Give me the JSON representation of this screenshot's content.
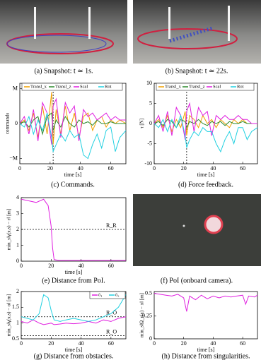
{
  "images": [
    {
      "caption": "(a) Snapshot: t ≃ 1s."
    },
    {
      "caption": "(b) Snapshot: t ≃ 22s."
    },
    {
      "caption": "(f) PoI (onboard camera)."
    }
  ],
  "chart_data": [
    {
      "type": "line",
      "caption": "(c) Commands.",
      "x_label": "time [s]",
      "y_label": "commands",
      "xlim": [
        0,
        70
      ],
      "xticks": [
        0,
        20,
        40,
        60
      ],
      "ylim": [
        -1.15,
        1.15
      ],
      "yticks": [
        {
          "value": -1,
          "label": "−M"
        },
        0,
        {
          "value": 1,
          "label": "M"
        }
      ],
      "vline": 22,
      "x": [
        0,
        3,
        6,
        9,
        12,
        15,
        18,
        21,
        22,
        24,
        27,
        30,
        33,
        36,
        39,
        42,
        45,
        48,
        51,
        54,
        57,
        60,
        63,
        66,
        70
      ],
      "series": [
        {
          "name": "Transl_x",
          "color": "#f0a000",
          "values": [
            0,
            0.1,
            -0.2,
            0.3,
            -0.4,
            0.5,
            -0.3,
            0.9,
            -0.6,
            0.4,
            -0.3,
            0.5,
            -0.2,
            0.3,
            -0.4,
            0.2,
            0.3,
            -0.2,
            0.1,
            0.2,
            -0.1,
            0.1,
            0,
            0.1,
            0
          ]
        },
        {
          "name": "Transl_z",
          "color": "#2e8b2e",
          "values": [
            0,
            0.05,
            -0.1,
            0.1,
            0.2,
            -0.3,
            0.2,
            0.3,
            -0.2,
            0.1,
            -0.1,
            0.2,
            0,
            -0.1,
            0.1,
            0,
            0.05,
            -0.05,
            0.1,
            0,
            0,
            0.05,
            0,
            0,
            0
          ]
        },
        {
          "name": "Scal",
          "color": "#e020e0",
          "values": [
            0,
            0.2,
            -0.3,
            0.4,
            -0.5,
            0.6,
            0.3,
            -0.6,
            0.5,
            0.7,
            -0.4,
            0.6,
            0.3,
            0.5,
            -0.5,
            0.4,
            0.2,
            0.3,
            0.1,
            0.2,
            0.3,
            0.1,
            0.2,
            0.1,
            0.1
          ]
        },
        {
          "name": "Rot",
          "color": "#20d0e0",
          "values": [
            0,
            -0.1,
            0.2,
            -0.3,
            0.1,
            -0.2,
            0.3,
            -0.4,
            -0.8,
            -0.6,
            -0.3,
            -0.5,
            -0.2,
            -0.4,
            -0.3,
            -0.9,
            -1,
            -0.6,
            -0.3,
            -0.7,
            -0.2,
            -0.1,
            -0.8,
            -0.4,
            -0.2
          ]
        }
      ]
    },
    {
      "type": "line",
      "caption": "(d) Force feedback.",
      "x_label": "time [s]",
      "y_label": "τ [N]",
      "xlim": [
        0,
        70
      ],
      "xticks": [
        0,
        20,
        40,
        60
      ],
      "ylim": [
        -10,
        10
      ],
      "yticks": [
        -10,
        -5,
        0,
        5,
        10
      ],
      "vline": 22,
      "x": [
        0,
        3,
        6,
        9,
        12,
        15,
        18,
        21,
        22,
        24,
        27,
        30,
        33,
        36,
        39,
        42,
        45,
        48,
        51,
        54,
        57,
        60,
        63,
        66,
        70
      ],
      "series": [
        {
          "name": "Transl_x",
          "color": "#f0a000",
          "values": [
            0,
            1,
            -1,
            2,
            -2,
            1,
            -1,
            3,
            -3,
            2,
            1,
            -1,
            2,
            0,
            1,
            -1,
            1,
            0,
            -1,
            1,
            0,
            1,
            0,
            0,
            0
          ]
        },
        {
          "name": "Transl_z",
          "color": "#2e8b2e",
          "values": [
            0,
            0.5,
            -0.5,
            1,
            0.5,
            -1,
            1,
            0.5,
            -1,
            0.5,
            0,
            1,
            0,
            -0.5,
            0.5,
            0,
            0.5,
            -0.5,
            0.5,
            0,
            0,
            0.5,
            0,
            0,
            0
          ]
        },
        {
          "name": "Scal",
          "color": "#e020e0",
          "values": [
            0,
            2,
            -2,
            3,
            -3,
            4,
            2,
            -4,
            3,
            5,
            -2,
            4,
            2,
            3,
            -3,
            2,
            1,
            2,
            1,
            1,
            2,
            1,
            1,
            0,
            0
          ]
        },
        {
          "name": "Rot",
          "color": "#20d0e0",
          "values": [
            0,
            -1,
            1,
            -2,
            1,
            -1,
            2,
            -3,
            -6,
            -4,
            -2,
            -3,
            -1,
            -2,
            -2,
            -5,
            -7,
            -4,
            -2,
            -5,
            -1,
            -1,
            -4,
            -2,
            -1
          ]
        }
      ]
    },
    {
      "type": "line",
      "caption": "(e) Distance from PoI.",
      "x_label": "time [s]",
      "y_label": "min_s‖γ(x,s) − r‖ [m]",
      "xlim": [
        0,
        70
      ],
      "xticks": [
        0,
        20,
        40,
        60
      ],
      "ylim": [
        0,
        4
      ],
      "yticks": [
        0,
        1,
        2,
        3,
        4
      ],
      "hlines": [
        {
          "value": 2,
          "label": "R_R"
        }
      ],
      "x": [
        0,
        5,
        10,
        15,
        18,
        20,
        21,
        22,
        25,
        30,
        40,
        50,
        60,
        70
      ],
      "series": [
        {
          "color": "#e020e0",
          "values": [
            3.9,
            3.8,
            3.7,
            3.9,
            3.5,
            2.2,
            0.8,
            0.1,
            0.05,
            0.05,
            0.05,
            0.05,
            0.05,
            0.05
          ]
        }
      ]
    },
    {
      "type": "line",
      "caption": "(g) Distance from obstacles.",
      "x_label": "time [s]",
      "y_label": "min_s‖γ(x,s) − o‖ [m]",
      "xlim": [
        0,
        70
      ],
      "xticks": [
        0,
        20,
        40,
        60
      ],
      "ylim": [
        0.5,
        2
      ],
      "yticks": [
        0.5,
        1,
        1.5,
        2
      ],
      "hlines": [
        {
          "value": 1.2,
          "label": "R_Ō"
        },
        {
          "value": 0.6,
          "label": "R_O"
        }
      ],
      "x": [
        0,
        4,
        8,
        12,
        15,
        18,
        20,
        22,
        26,
        30,
        35,
        40,
        45,
        50,
        55,
        60,
        65,
        70
      ],
      "series": [
        {
          "name": "ō₁",
          "color": "#e020e0",
          "values": [
            1.05,
            1.0,
            1.1,
            1.0,
            0.95,
            0.98,
            1.0,
            0.95,
            0.97,
            1.0,
            0.98,
            1.0,
            1.05,
            1.0,
            1.1,
            1.05,
            1.15,
            1.2
          ]
        },
        {
          "name": "ō₂",
          "color": "#20d0e0",
          "values": [
            1.2,
            1.15,
            1.1,
            1.3,
            1.9,
            1.8,
            1.4,
            1.1,
            1.05,
            1.1,
            1.15,
            1.1,
            1.05,
            1.1,
            1.2,
            1.3,
            1.5,
            1.9
          ]
        }
      ]
    },
    {
      "type": "line",
      "caption": "(h) Distance from singularities.",
      "x_label": "time [s]",
      "y_label": "min_s‖Ω_r(x) − x‖ [m]",
      "xlim": [
        0,
        70
      ],
      "xticks": [
        0,
        20,
        40,
        60
      ],
      "ylim": [
        0,
        0.52
      ],
      "yticks": [
        0,
        0.25,
        0.5
      ],
      "x": [
        0,
        4,
        8,
        12,
        16,
        20,
        22,
        24,
        28,
        32,
        36,
        40,
        44,
        48,
        52,
        56,
        60,
        62,
        64,
        68,
        70
      ],
      "series": [
        {
          "color": "#e020e0",
          "values": [
            0.5,
            0.49,
            0.48,
            0.47,
            0.49,
            0.45,
            0.3,
            0.47,
            0.43,
            0.48,
            0.44,
            0.47,
            0.45,
            0.47,
            0.46,
            0.47,
            0.48,
            0.38,
            0.47,
            0.46,
            0.48
          ]
        }
      ]
    }
  ]
}
